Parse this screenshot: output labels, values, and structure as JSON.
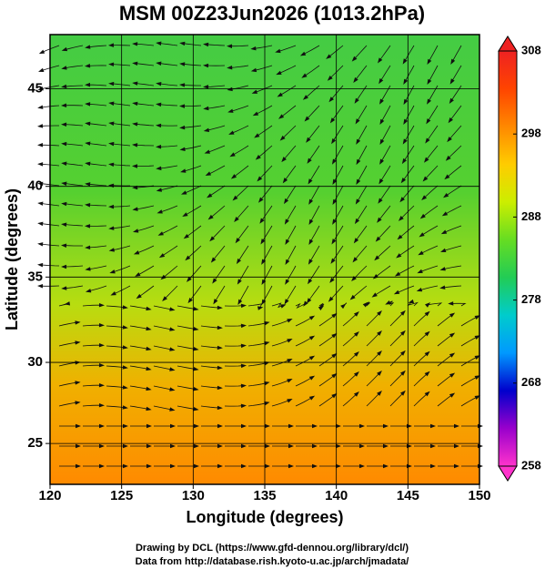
{
  "chart_data": {
    "type": "map",
    "title": "MSM 00Z23Jun2026 (1013.2hPa)",
    "xlabel": "Longitude (degrees)",
    "ylabel": "Latitude  (degrees)",
    "xlim": [
      120,
      150
    ],
    "xticks": [
      120,
      125,
      130,
      135,
      140,
      145,
      150
    ],
    "ylim": [
      22.4,
      47.6
    ],
    "yticks": [
      25,
      30,
      35,
      40,
      45
    ],
    "projection": "mercator",
    "grid": true,
    "colorbar": {
      "lim": [
        258,
        308
      ],
      "ticks": [
        258,
        268,
        278,
        288,
        298,
        308
      ],
      "colors": [
        "#ff33cc",
        "#9900cc",
        "#0000cc",
        "#0099ff",
        "#00cccc",
        "#22cc55",
        "#66dd22",
        "#ccee00",
        "#ffcc00",
        "#ff8800",
        "#ff4400",
        "#ee2222"
      ]
    },
    "footer": [
      "Drawing by DCL (https://www.gfd-dennou.org/library/dcl/)",
      "Data from http://database.rish.kyoto-u.ac.jp/arch/jmadata/"
    ]
  }
}
